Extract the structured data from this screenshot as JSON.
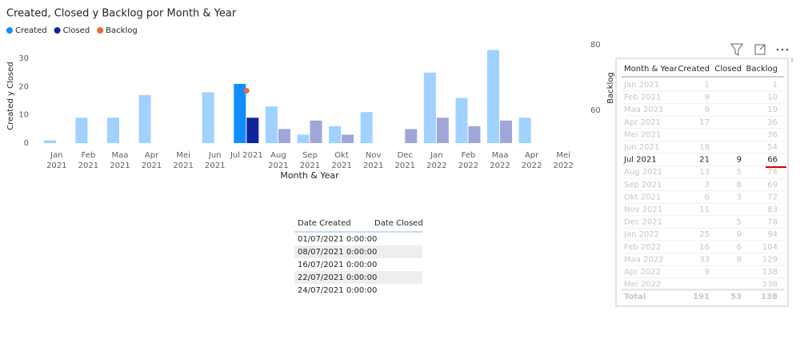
{
  "chart_data": {
    "type": "bar",
    "title": "Created, Closed y Backlog por Month & Year",
    "x_label": "Month & Year",
    "y_label": "Created y Closed",
    "y2_label": "Backlog",
    "categories": [
      [
        "Jan",
        "2021"
      ],
      [
        "Feb",
        "2021"
      ],
      [
        "Maa",
        "2021"
      ],
      [
        "Apr",
        "2021"
      ],
      [
        "Mei",
        "2021"
      ],
      [
        "Jun",
        "2021"
      ],
      [
        "Jul 2021"
      ],
      [
        "Aug",
        "2021"
      ],
      [
        "Sep",
        "2021"
      ],
      [
        "Okt",
        "2021"
      ],
      [
        "Nov",
        "2021"
      ],
      [
        "Dec",
        "2021"
      ],
      [
        "Jan",
        "2022"
      ],
      [
        "Feb",
        "2022"
      ],
      [
        "Maa",
        "2022"
      ],
      [
        "Apr",
        "2022"
      ],
      [
        "Mei",
        "2022"
      ]
    ],
    "series": [
      {
        "name": "Created",
        "color": "#118DFF",
        "faded_color": "#A0D1FF",
        "values": [
          1,
          9,
          9,
          17,
          null,
          18,
          21,
          13,
          3,
          6,
          11,
          null,
          25,
          16,
          33,
          9,
          null
        ]
      },
      {
        "name": "Closed",
        "color": "#12239E",
        "faded_color": "#A0A6D8",
        "values": [
          null,
          null,
          null,
          null,
          null,
          null,
          9,
          5,
          8,
          3,
          null,
          5,
          9,
          6,
          8,
          null,
          null
        ]
      },
      {
        "name": "Backlog",
        "color": "#E66C37",
        "axis": "y2",
        "values": [
          null,
          null,
          null,
          null,
          null,
          null,
          66,
          null,
          null,
          null,
          null,
          null,
          null,
          null,
          null,
          null,
          null
        ]
      }
    ],
    "highlight": 6,
    "ylim": [
      0,
      36
    ],
    "yticks": [
      0,
      10,
      20,
      30
    ],
    "y2lim": [
      50,
      81
    ],
    "y2ticks": [
      60,
      80
    ],
    "legend": "top-left"
  },
  "matrix": {
    "headers": [
      "Month & Year",
      "Created",
      "Closed",
      "Backlog"
    ],
    "rows": [
      [
        "Jan 2021",
        1,
        null,
        1
      ],
      [
        "Feb 2021",
        9,
        null,
        10
      ],
      [
        "Maa 2021",
        9,
        null,
        19
      ],
      [
        "Apr 2021",
        17,
        null,
        36
      ],
      [
        "Mei 2021",
        null,
        null,
        36
      ],
      [
        "Jun 2021",
        18,
        null,
        54
      ],
      [
        "Jul 2021",
        21,
        9,
        66
      ],
      [
        "Aug 2021",
        13,
        5,
        74
      ],
      [
        "Sep 2021",
        3,
        8,
        69
      ],
      [
        "Okt 2021",
        6,
        3,
        72
      ],
      [
        "Nov 2021",
        11,
        null,
        83
      ],
      [
        "Dec 2021",
        null,
        5,
        78
      ],
      [
        "Jan 2022",
        25,
        9,
        94
      ],
      [
        "Feb 2022",
        16,
        6,
        104
      ],
      [
        "Maa 2022",
        33,
        8,
        129
      ],
      [
        "Apr 2022",
        9,
        null,
        138
      ],
      [
        "Mei 2022",
        null,
        null,
        138
      ]
    ],
    "total": [
      "Total",
      191,
      53,
      138
    ],
    "selected_row": 6
  },
  "detail_table": {
    "headers": [
      "Date Created",
      "Date Closed"
    ],
    "rows": [
      [
        "01/07/2021 0:00:00"
      ],
      [
        "08/07/2021 0:00:00"
      ],
      [
        "16/07/2021 0:00:00"
      ],
      [
        "22/07/2021 0:00:00"
      ],
      [
        "24/07/2021 0:00:00"
      ]
    ]
  }
}
